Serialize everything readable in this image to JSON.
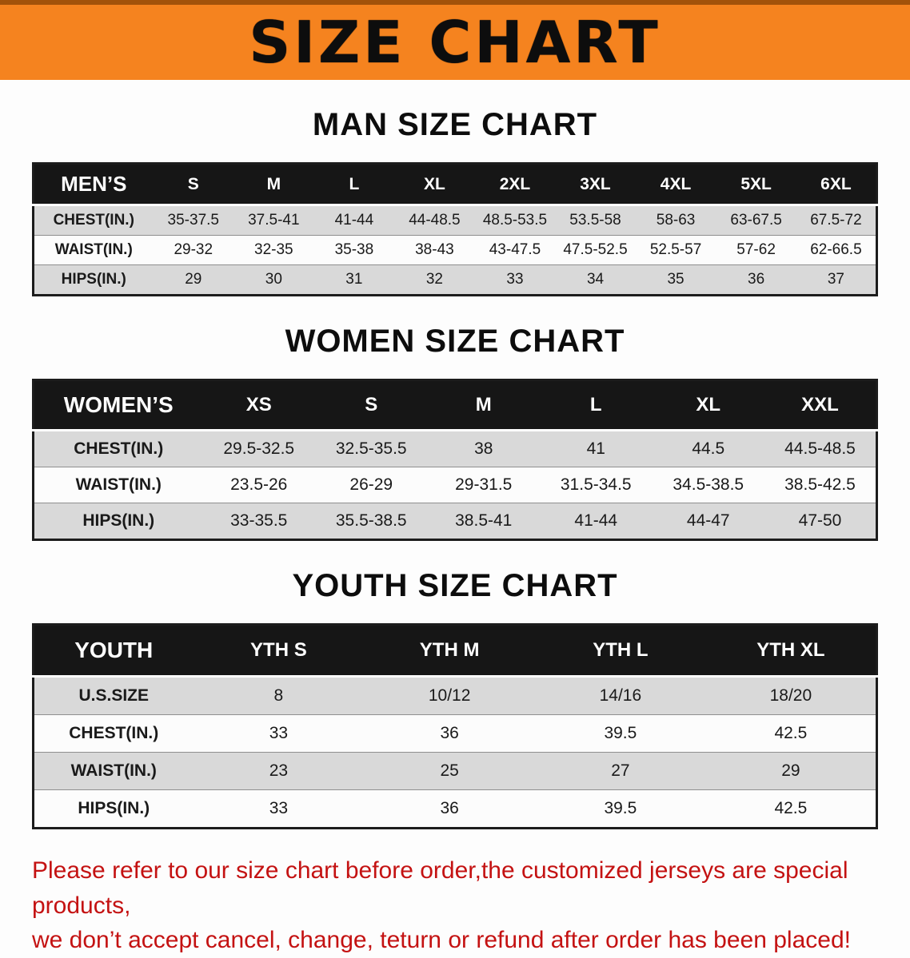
{
  "banner": {
    "title": "SIZE CHART"
  },
  "colors": {
    "banner_orange": "#f5831f",
    "table_header_black": "#161616",
    "row_stripe_gray": "#d9d9d9",
    "disclaimer_red": "#c41212"
  },
  "sections": [
    {
      "heading": "MAN SIZE CHART",
      "table": {
        "header": [
          "MEN’S",
          "S",
          "M",
          "L",
          "XL",
          "2XL",
          "3XL",
          "4XL",
          "5XL",
          "6XL"
        ],
        "rows": [
          [
            "CHEST(IN.)",
            "35-37.5",
            "37.5-41",
            "41-44",
            "44-48.5",
            "48.5-53.5",
            "53.5-58",
            "58-63",
            "63-67.5",
            "67.5-72"
          ],
          [
            "WAIST(IN.)",
            "29-32",
            "32-35",
            "35-38",
            "38-43",
            "43-47.5",
            "47.5-52.5",
            "52.5-57",
            "57-62",
            "62-66.5"
          ],
          [
            "HIPS(IN.)",
            "29",
            "30",
            "31",
            "32",
            "33",
            "34",
            "35",
            "36",
            "37"
          ]
        ]
      }
    },
    {
      "heading": "WOMEN SIZE CHART",
      "table": {
        "header": [
          "WOMEN’S",
          "XS",
          "S",
          "M",
          "L",
          "XL",
          "XXL"
        ],
        "rows": [
          [
            "CHEST(IN.)",
            "29.5-32.5",
            "32.5-35.5",
            "38",
            "41",
            "44.5",
            "44.5-48.5"
          ],
          [
            "WAIST(IN.)",
            "23.5-26",
            "26-29",
            "29-31.5",
            "31.5-34.5",
            "34.5-38.5",
            "38.5-42.5"
          ],
          [
            "HIPS(IN.)",
            "33-35.5",
            "35.5-38.5",
            "38.5-41",
            "41-44",
            "44-47",
            "47-50"
          ]
        ]
      }
    },
    {
      "heading": "YOUTH SIZE CHART",
      "table": {
        "header": [
          "YOUTH",
          "YTH S",
          "YTH M",
          "YTH L",
          "YTH XL"
        ],
        "rows": [
          [
            "U.S.SIZE",
            "8",
            "10/12",
            "14/16",
            "18/20"
          ],
          [
            "CHEST(IN.)",
            "33",
            "36",
            "39.5",
            "42.5"
          ],
          [
            "WAIST(IN.)",
            "23",
            "25",
            "27",
            "29"
          ],
          [
            "HIPS(IN.)",
            "33",
            "36",
            "39.5",
            "42.5"
          ]
        ]
      }
    }
  ],
  "disclaimer": {
    "text": "Please refer to our size chart before order,the customized jerseys are special products,\nwe don’t accept cancel, change, teturn or refund after order has been placed!"
  }
}
